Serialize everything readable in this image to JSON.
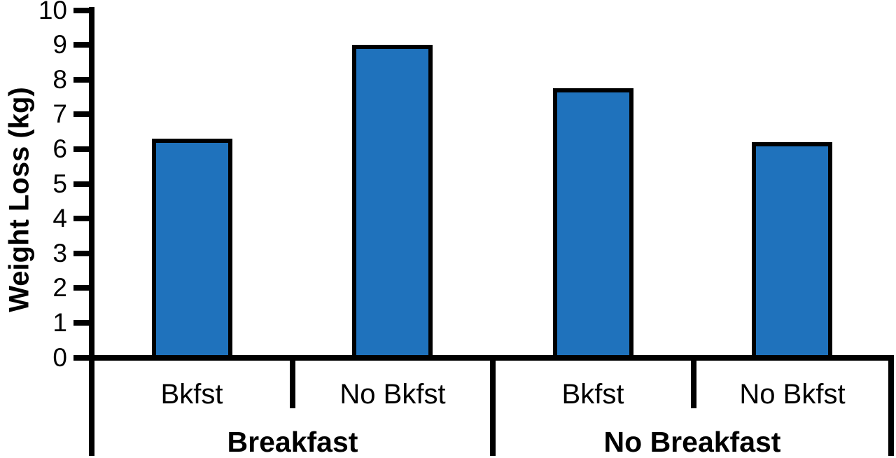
{
  "chart_data": {
    "type": "bar",
    "title": "",
    "xlabel": "",
    "ylabel": "Weight Loss (kg)",
    "ylim": [
      0,
      10
    ],
    "yticks": [
      0,
      1,
      2,
      3,
      4,
      5,
      6,
      7,
      8,
      9,
      10
    ],
    "grid": false,
    "legend": false,
    "bar_color": "#1F72BC",
    "bar_border_color": "#000000",
    "axis_color": "#000000",
    "background_color": "#FFFFFF",
    "categories": [
      "Bkfst",
      "No Bkfst",
      "Bkfst",
      "No Bkfst"
    ],
    "values": [
      6.3,
      9.0,
      7.75,
      6.2
    ],
    "groups": [
      {
        "label": "Breakfast",
        "bars": [
          {
            "category": "Bkfst",
            "value": 6.3
          },
          {
            "category": "No Bkfst",
            "value": 9.0
          }
        ]
      },
      {
        "label": "No Breakfast",
        "bars": [
          {
            "category": "Bkfst",
            "value": 7.75
          },
          {
            "category": "No Bkfst",
            "value": 6.2
          }
        ]
      }
    ]
  }
}
